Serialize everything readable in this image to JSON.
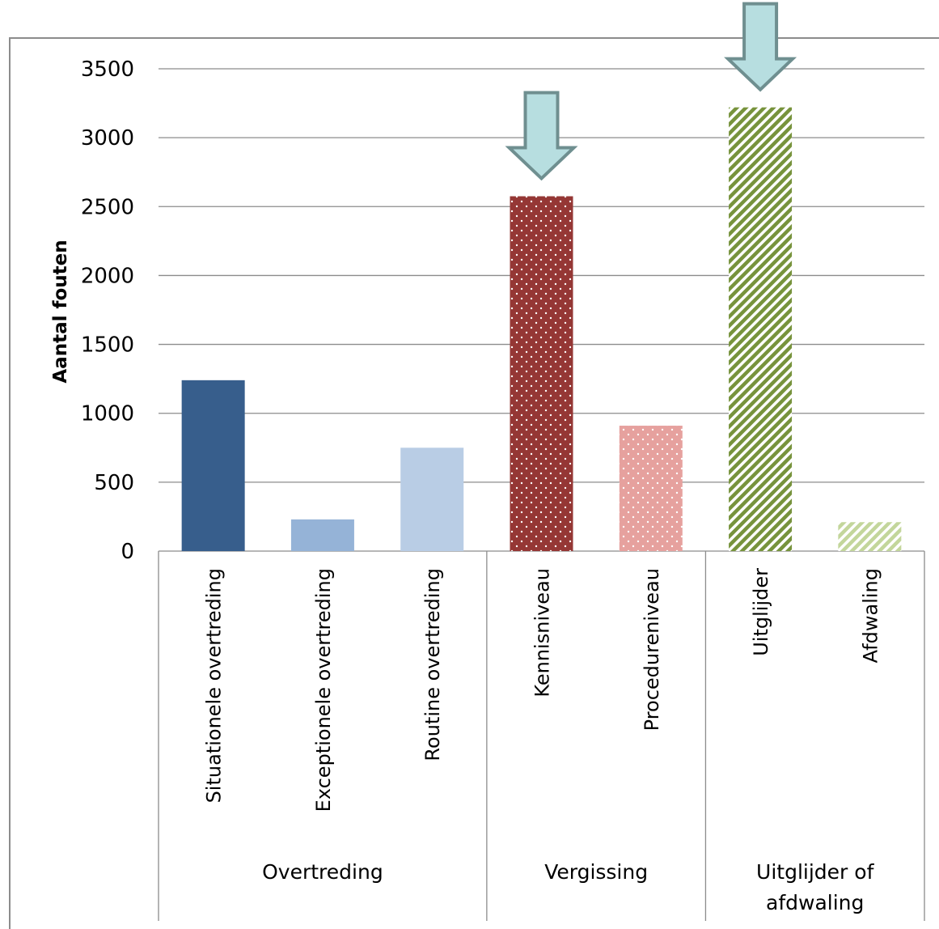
{
  "chart_data": {
    "type": "bar",
    "ylabel": "Aantal fouten",
    "xlabel": "",
    "ylim": [
      0,
      3500
    ],
    "yticks": [
      0,
      500,
      1000,
      1500,
      2000,
      2500,
      3000,
      3500
    ],
    "grid": true,
    "categories": [
      "Situationele overtreding",
      "Exceptionele overtreding",
      "Routine overtreding",
      "Kennisniveau",
      "Procedureniveau",
      "Uitglijder",
      "Afdwaling"
    ],
    "groups": [
      {
        "label": "Overtreding",
        "categories": [
          0,
          1,
          2
        ]
      },
      {
        "label": "Vergissing",
        "categories": [
          3,
          4
        ]
      },
      {
        "label": "Uitglijder of afdwaling",
        "categories": [
          5,
          6
        ]
      }
    ],
    "values": [
      1240,
      230,
      750,
      2575,
      910,
      3220,
      210
    ],
    "bar_colors": [
      "#375e8c",
      "#95b3d7",
      "#b9cde5",
      "#953735",
      "#e6a19e",
      "#77933c",
      "#c3d69b"
    ],
    "bar_patterns": [
      "solid",
      "solid",
      "solid",
      "dots",
      "dots",
      "diagonal",
      "diagonal"
    ],
    "highlighted_categories": [
      "Kennisniveau",
      "Uitglijder"
    ],
    "arrow_color": "#b7dee0",
    "arrow_outline_color": "#6f8f90"
  }
}
